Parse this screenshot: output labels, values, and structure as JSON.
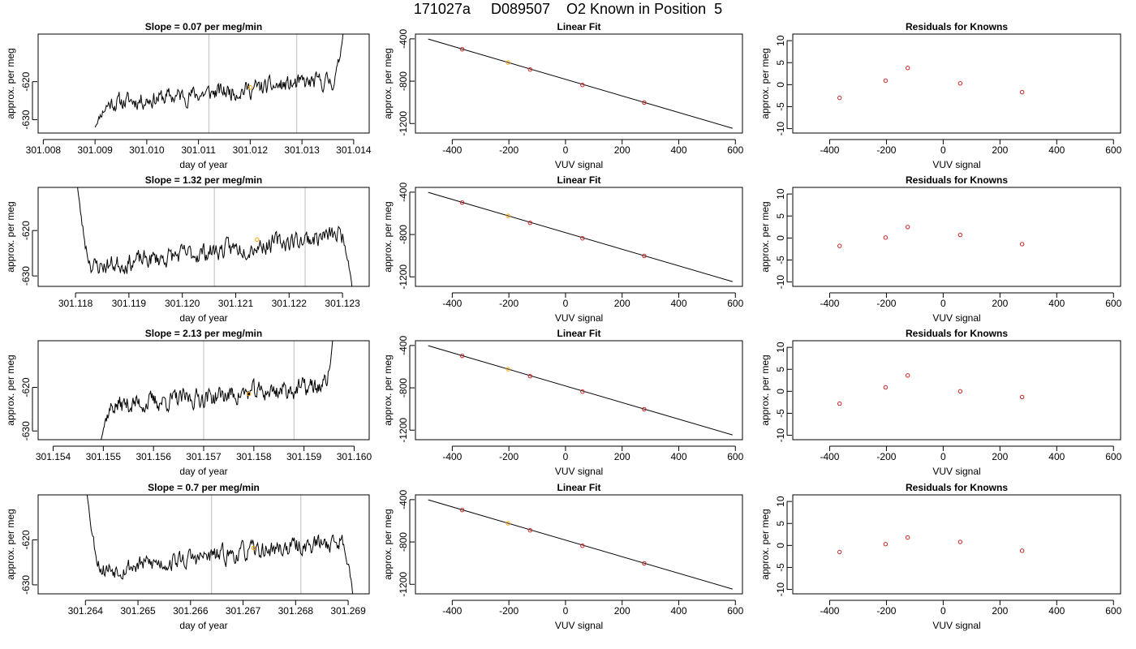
{
  "page_title": "171027a     D089507    O2 Known in Position  5",
  "colors": {
    "trace": "#000000",
    "marker_highlight": "#FFA500",
    "knowns_points": "#CC2222",
    "fit_line": "#000000",
    "vline": "#BEBEBE"
  },
  "chart_data": [
    {
      "type": "line",
      "row": 1,
      "panel": "slope",
      "title": "Slope =  0.07  per meg/min",
      "xlabel": "day of year",
      "ylabel": "approx. per meg",
      "xlim": [
        301.0079,
        301.0143
      ],
      "ylim": [
        -633.5,
        -607.5
      ],
      "xticks": [
        "301.008",
        "301.009",
        "301.010",
        "301.011",
        "301.012",
        "301.013",
        "301.014"
      ],
      "xtick_values": [
        301.008,
        301.009,
        301.01,
        301.011,
        301.012,
        301.013,
        301.014
      ],
      "yticks": [
        "-630",
        "-620"
      ],
      "ytick_values": [
        -630,
        -620
      ],
      "vlines": [
        301.0112,
        301.0129
      ],
      "trace": {
        "start": 301.009,
        "end": 301.0138,
        "seed": 11,
        "start_level": -632.0,
        "end_level": -606.5,
        "base_from": -626.0,
        "base_to": -619.5,
        "amp": 2.6,
        "n": 330
      },
      "marker": {
        "x": 301.012,
        "y": -621.5
      }
    },
    {
      "type": "scatter",
      "row": 1,
      "panel": "fit",
      "title": "Linear Fit",
      "xlabel": "VUV signal",
      "ylabel": "approx. per meg",
      "xlim": [
        -530,
        625
      ],
      "ylim": [
        -1290,
        -355
      ],
      "xticks": [
        "-400",
        "-200",
        "0",
        "200",
        "400",
        "600"
      ],
      "xtick_values": [
        -400,
        -200,
        0,
        200,
        400,
        600
      ],
      "yticks": [
        "-1200",
        "-800",
        "-400"
      ],
      "ytick_values": [
        -1200,
        -800,
        -400
      ],
      "line": {
        "x": [
          -485,
          590
        ],
        "y": [
          -402,
          -1245
        ]
      },
      "points": {
        "x": [
          -365,
          -203,
          -125,
          60,
          278
        ],
        "y": [
          -498,
          -624,
          -690,
          -836,
          -1002
        ]
      },
      "highlight_index": 1
    },
    {
      "type": "scatter",
      "row": 1,
      "panel": "residuals",
      "title": "Residuals for Knowns",
      "xlabel": "VUV signal",
      "ylabel": "approx. per meg",
      "xlim": [
        -530,
        625
      ],
      "ylim": [
        -11,
        11.5
      ],
      "xticks": [
        "-400",
        "-200",
        "0",
        "200",
        "400",
        "600"
      ],
      "xtick_values": [
        -400,
        -200,
        0,
        200,
        400,
        600
      ],
      "yticks": [
        "-10",
        "-5",
        "0",
        "5",
        "10"
      ],
      "ytick_values": [
        -10,
        -5,
        0,
        5,
        10
      ],
      "points": {
        "x": [
          -365,
          -203,
          -125,
          60,
          278
        ],
        "y": [
          -3.0,
          0.9,
          3.8,
          0.3,
          -1.7
        ]
      }
    },
    {
      "type": "line",
      "row": 2,
      "panel": "slope",
      "title": "Slope =  1.32  per meg/min",
      "xlabel": "day of year",
      "ylabel": "approx. per meg",
      "xlim": [
        301.1173,
        301.1235
      ],
      "ylim": [
        -632.3,
        -610.5
      ],
      "xticks": [
        "301.118",
        "301.119",
        "301.120",
        "301.121",
        "301.122",
        "301.123"
      ],
      "xtick_values": [
        301.118,
        301.119,
        301.12,
        301.121,
        301.122,
        301.123
      ],
      "yticks": [
        "-630",
        "-620"
      ],
      "ytick_values": [
        -630,
        -620
      ],
      "vlines": [
        301.1206,
        301.1223
      ],
      "trace": {
        "start": 301.118,
        "end": 301.1232,
        "seed": 23,
        "start_level": -606.0,
        "end_level": -635.0,
        "base_from": -628.5,
        "base_to": -620.5,
        "amp": 2.4,
        "n": 340
      },
      "marker": {
        "x": 301.1214,
        "y": -622.0
      }
    },
    {
      "type": "scatter",
      "row": 2,
      "panel": "fit",
      "title": "Linear Fit",
      "xlabel": "VUV signal",
      "ylabel": "approx. per meg",
      "xlim": [
        -530,
        625
      ],
      "ylim": [
        -1290,
        -355
      ],
      "xticks": [
        "-400",
        "-200",
        "0",
        "200",
        "400",
        "600"
      ],
      "xtick_values": [
        -400,
        -200,
        0,
        200,
        400,
        600
      ],
      "yticks": [
        "-1200",
        "-800",
        "-400"
      ],
      "ytick_values": [
        -1200,
        -800,
        -400
      ],
      "line": {
        "x": [
          -485,
          590
        ],
        "y": [
          -402,
          -1245
        ]
      },
      "points": {
        "x": [
          -365,
          -203,
          -125,
          60,
          278
        ],
        "y": [
          -498,
          -624,
          -690,
          -836,
          -1002
        ]
      },
      "highlight_index": 1
    },
    {
      "type": "scatter",
      "row": 2,
      "panel": "residuals",
      "title": "Residuals for Knowns",
      "xlabel": "VUV signal",
      "ylabel": "approx. per meg",
      "xlim": [
        -530,
        625
      ],
      "ylim": [
        -11,
        11.5
      ],
      "xticks": [
        "-400",
        "-200",
        "0",
        "200",
        "400",
        "600"
      ],
      "xtick_values": [
        -400,
        -200,
        0,
        200,
        400,
        600
      ],
      "yticks": [
        "-10",
        "-5",
        "0",
        "5",
        "10"
      ],
      "ytick_values": [
        -10,
        -5,
        0,
        5,
        10
      ],
      "points": {
        "x": [
          -365,
          -203,
          -125,
          60,
          278
        ],
        "y": [
          -1.8,
          0.1,
          2.5,
          0.7,
          -1.4
        ]
      }
    },
    {
      "type": "line",
      "row": 3,
      "panel": "slope",
      "title": "Slope =  2.13  per meg/min",
      "xlabel": "day of year",
      "ylabel": "approx. per meg",
      "xlim": [
        301.1537,
        301.1603
      ],
      "ylim": [
        -632.0,
        -609.3
      ],
      "xticks": [
        "301.154",
        "301.155",
        "301.156",
        "301.157",
        "301.158",
        "301.159",
        "301.160"
      ],
      "xtick_values": [
        301.154,
        301.155,
        301.156,
        301.157,
        301.158,
        301.159,
        301.16
      ],
      "yticks": [
        "-630",
        "-620"
      ],
      "ytick_values": [
        -630,
        -620
      ],
      "vlines": [
        301.157,
        301.1588
      ],
      "trace": {
        "start": 301.1549,
        "end": 301.1596,
        "seed": 37,
        "start_level": -634.0,
        "end_level": -606.0,
        "base_from": -624.5,
        "base_to": -619.5,
        "amp": 2.5,
        "n": 320
      },
      "marker": {
        "x": 301.1579,
        "y": -621.5
      }
    },
    {
      "type": "scatter",
      "row": 3,
      "panel": "fit",
      "title": "Linear Fit",
      "xlabel": "VUV signal",
      "ylabel": "approx. per meg",
      "xlim": [
        -530,
        625
      ],
      "ylim": [
        -1290,
        -355
      ],
      "xticks": [
        "-400",
        "-200",
        "0",
        "200",
        "400",
        "600"
      ],
      "xtick_values": [
        -400,
        -200,
        0,
        200,
        400,
        600
      ],
      "yticks": [
        "-1200",
        "-800",
        "-400"
      ],
      "ytick_values": [
        -1200,
        -800,
        -400
      ],
      "line": {
        "x": [
          -485,
          590
        ],
        "y": [
          -402,
          -1245
        ]
      },
      "points": {
        "x": [
          -365,
          -203,
          -125,
          60,
          278
        ],
        "y": [
          -498,
          -624,
          -690,
          -836,
          -1002
        ]
      },
      "highlight_index": 1
    },
    {
      "type": "scatter",
      "row": 3,
      "panel": "residuals",
      "title": "Residuals for Knowns",
      "xlabel": "VUV signal",
      "ylabel": "approx. per meg",
      "xlim": [
        -530,
        625
      ],
      "ylim": [
        -11,
        11.5
      ],
      "xticks": [
        "-400",
        "-200",
        "0",
        "200",
        "400",
        "600"
      ],
      "xtick_values": [
        -400,
        -200,
        0,
        200,
        400,
        600
      ],
      "yticks": [
        "-10",
        "-5",
        "0",
        "5",
        "10"
      ],
      "ytick_values": [
        -10,
        -5,
        0,
        5,
        10
      ],
      "points": {
        "x": [
          -365,
          -203,
          -125,
          60,
          278
        ],
        "y": [
          -2.8,
          0.9,
          3.6,
          0.0,
          -1.3
        ]
      }
    },
    {
      "type": "line",
      "row": 4,
      "panel": "slope",
      "title": "Slope =  0.7  per meg/min",
      "xlabel": "day of year",
      "ylabel": "approx. per meg",
      "xlim": [
        301.2631,
        301.2694
      ],
      "ylim": [
        -632.0,
        -610.0
      ],
      "xticks": [
        "301.264",
        "301.265",
        "301.266",
        "301.267",
        "301.268",
        "301.269"
      ],
      "xtick_values": [
        301.264,
        301.265,
        301.266,
        301.267,
        301.268,
        301.269
      ],
      "yticks": [
        "-630",
        "-620"
      ],
      "ytick_values": [
        -630,
        -620
      ],
      "vlines": [
        301.2664,
        301.2681
      ],
      "trace": {
        "start": 301.264,
        "end": 301.2691,
        "seed": 53,
        "start_level": -606.0,
        "end_level": -634.0,
        "base_from": -627.0,
        "base_to": -620.0,
        "amp": 2.4,
        "n": 330
      },
      "marker": {
        "x": 301.2672,
        "y": -621.8
      }
    },
    {
      "type": "scatter",
      "row": 4,
      "panel": "fit",
      "title": "Linear Fit",
      "xlabel": "VUV signal",
      "ylabel": "approx. per meg",
      "xlim": [
        -530,
        625
      ],
      "ylim": [
        -1290,
        -355
      ],
      "xticks": [
        "-400",
        "-200",
        "0",
        "200",
        "400",
        "600"
      ],
      "xtick_values": [
        -400,
        -200,
        0,
        200,
        400,
        600
      ],
      "yticks": [
        "-1200",
        "-800",
        "-400"
      ],
      "ytick_values": [
        -1200,
        -800,
        -400
      ],
      "line": {
        "x": [
          -485,
          590
        ],
        "y": [
          -402,
          -1245
        ]
      },
      "points": {
        "x": [
          -365,
          -203,
          -125,
          60,
          278
        ],
        "y": [
          -498,
          -624,
          -690,
          -836,
          -1002
        ]
      },
      "highlight_index": 1
    },
    {
      "type": "scatter",
      "row": 4,
      "panel": "residuals",
      "title": "Residuals for Knowns",
      "xlabel": "VUV signal",
      "ylabel": "approx. per meg",
      "xlim": [
        -530,
        625
      ],
      "ylim": [
        -11,
        11.5
      ],
      "xticks": [
        "-400",
        "-200",
        "0",
        "200",
        "400",
        "600"
      ],
      "xtick_values": [
        -400,
        -200,
        0,
        200,
        400,
        600
      ],
      "yticks": [
        "-10",
        "-5",
        "0",
        "5",
        "10"
      ],
      "ytick_values": [
        -10,
        -5,
        0,
        5,
        10
      ],
      "points": {
        "x": [
          -365,
          -203,
          -125,
          60,
          278
        ],
        "y": [
          -1.5,
          0.3,
          1.8,
          0.8,
          -1.2
        ]
      }
    }
  ]
}
